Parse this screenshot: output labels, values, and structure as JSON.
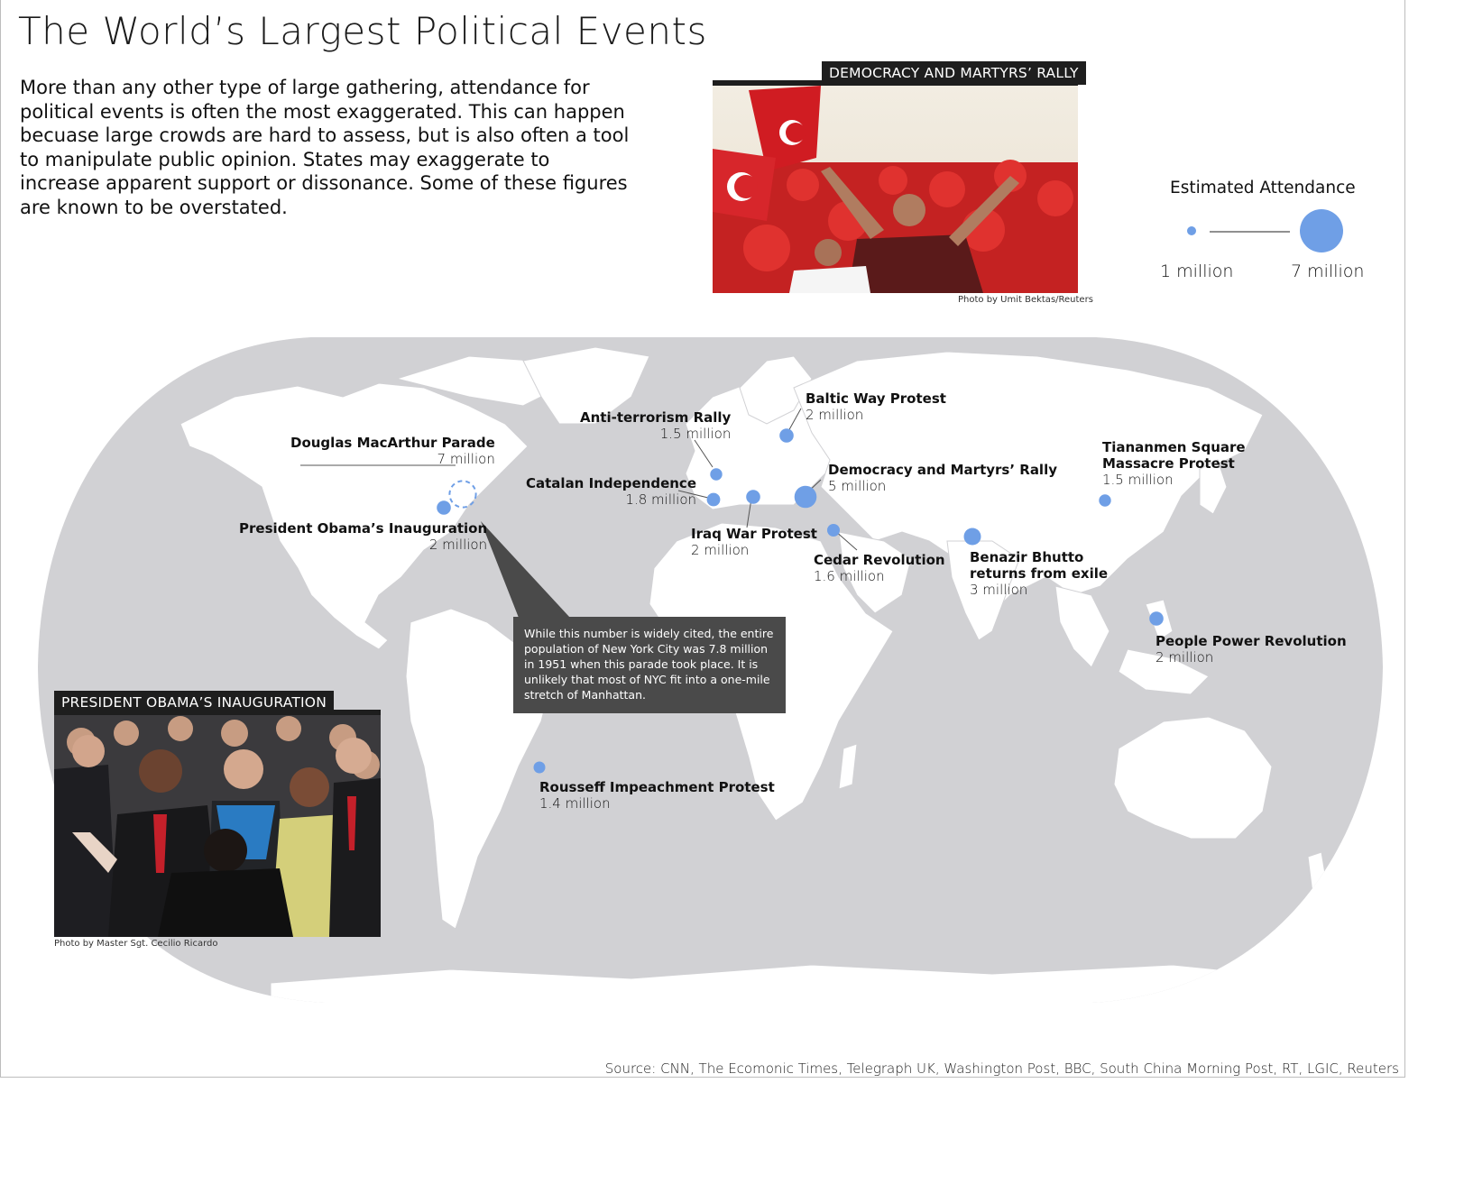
{
  "title": "The World’s Largest Political Events",
  "intro": "More than any other type of large gathering, attendance for political events is often the most exaggerated. This can happen becuase large crowds are hard to assess, but is also often a tool to manipulate public opinion. States may exaggerate to increase apparent support or dissonance.  Some of these figures are known to be overstated.",
  "photo_top": {
    "label": "DEMOCRACY AND MARTYRS’ RALLY",
    "credit": "Photo by Umit Bektas/Reuters"
  },
  "photo_bottom": {
    "label": "PRESIDENT OBAMA’S INAUGURATION",
    "credit": "Photo by Master Sgt. Cecilio Ricardo"
  },
  "legend": {
    "title": "Estimated Attendance",
    "min_label": "1 million",
    "max_label": "7 million",
    "min_value": 1,
    "max_value": 7
  },
  "colors": {
    "land": "#d1d1d4",
    "borders": "#ffffff",
    "bubble": "#6f9fe6",
    "dark_label": "#1e1e1e",
    "note_box": "#4a4a4a"
  },
  "events": [
    {
      "name": "Douglas MacArthur Parade",
      "value": "7 million",
      "millions": 7,
      "dashed": true
    },
    {
      "name": "President Obama’s Inauguration",
      "value": "2 million",
      "millions": 2
    },
    {
      "name": "Anti-terrorism Rally",
      "value": "1.5 million",
      "millions": 1.5
    },
    {
      "name": "Baltic Way Protest",
      "value": "2 million",
      "millions": 2
    },
    {
      "name": "Catalan Independence",
      "value": "1.8 million",
      "millions": 1.8
    },
    {
      "name": "Democracy and Martyrs’ Rally",
      "value": "5 million",
      "millions": 5
    },
    {
      "name": "Iraq War Protest",
      "value": "2 million",
      "millions": 2
    },
    {
      "name": "Cedar Revolution",
      "value": "1.6 million",
      "millions": 1.6
    },
    {
      "name": "Benazir Bhutto returns from exile",
      "name_lines": [
        "Benazir Bhutto",
        "returns from exile"
      ],
      "value": "3 million",
      "millions": 3
    },
    {
      "name": "Tiananmen Square Massacre Protest",
      "name_lines": [
        "Tiananmen Square",
        "Massacre Protest"
      ],
      "value": "1.5 million",
      "millions": 1.5
    },
    {
      "name": "People Power Revolution",
      "value": "2 million",
      "millions": 2
    },
    {
      "name": "Rousseff Impeachment Protest",
      "value": "1.4 million",
      "millions": 1.4
    }
  ],
  "note": "While this number is widely cited, the entire population of New York City was 7.8 million in 1951 when this parade took place. It is unlikely that most of NYC fit into a one-mile stretch of Manhattan.",
  "source": "Source: CNN, The Ecomonic Times, Telegraph UK, Washington Post, BBC, South China Morning Post, RT, LGIC, Reuters"
}
